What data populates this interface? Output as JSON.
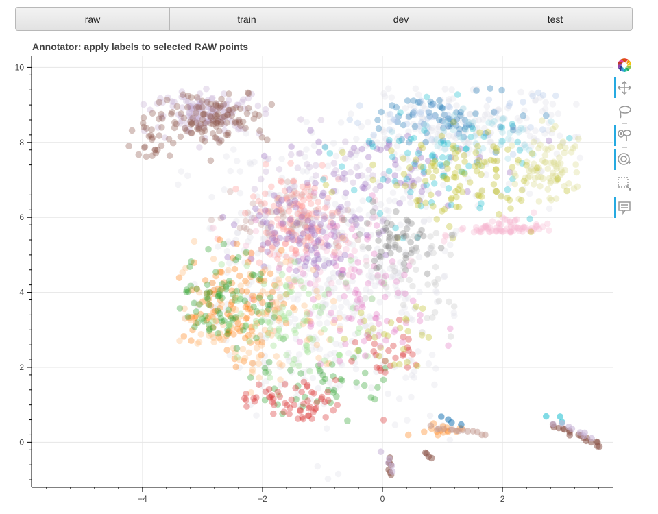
{
  "tabs": [
    {
      "id": "raw",
      "label": "raw"
    },
    {
      "id": "train",
      "label": "train"
    },
    {
      "id": "dev",
      "label": "dev"
    },
    {
      "id": "test",
      "label": "test"
    }
  ],
  "toolbar": {
    "tools": [
      {
        "name": "bokeh-logo-icon",
        "active": false
      },
      {
        "name": "pan-icon",
        "active": true
      },
      {
        "name": "lasso-select-icon",
        "active": false
      },
      {
        "name": "polygon-select-icon",
        "active": true
      },
      {
        "name": "wheel-zoom-icon",
        "active": true
      },
      {
        "name": "box-select-icon",
        "active": false
      },
      {
        "name": "hover-icon",
        "active": true
      }
    ]
  },
  "chart_data": {
    "type": "scatter",
    "title": "Annotator: apply labels to selected RAW points",
    "xlabel": "",
    "ylabel": "",
    "xlim": [
      -5.85,
      3.85
    ],
    "ylim": [
      -1.2,
      10.3
    ],
    "x_ticks": [
      -4,
      -2,
      0,
      2
    ],
    "x_tick_labels": [
      "−4",
      "−2",
      "0",
      "2"
    ],
    "y_ticks": [
      0,
      2,
      4,
      6,
      8,
      10
    ],
    "y_tick_labels": [
      "0",
      "2",
      "4",
      "6",
      "8",
      "10"
    ],
    "grid": true,
    "legend": "none",
    "point_opacity": 0.35,
    "clusters": [
      {
        "color": "#e0e0e8",
        "cx": -1.0,
        "cy": 4.3,
        "sx": 1.3,
        "sy": 2.0,
        "n": 480
      },
      {
        "color": "#e0e0e8",
        "cx": 1.4,
        "cy": 8.3,
        "sx": 0.9,
        "sy": 0.6,
        "n": 180
      },
      {
        "color": "#c5b0d5",
        "cx": -2.9,
        "cy": 8.8,
        "sx": 0.45,
        "sy": 0.28,
        "n": 130
      },
      {
        "color": "#8c564b",
        "cx": -2.9,
        "cy": 8.7,
        "sx": 0.5,
        "sy": 0.35,
        "n": 120
      },
      {
        "color": "#8c564b",
        "cx": -3.8,
        "cy": 7.9,
        "sx": 0.25,
        "sy": 0.2,
        "n": 20
      },
      {
        "color": "#c49c94",
        "cx": -1.5,
        "cy": 5.9,
        "sx": 0.5,
        "sy": 0.5,
        "n": 70
      },
      {
        "color": "#f7b6d2",
        "cx": 2.1,
        "cy": 5.3,
        "sx": 0.35,
        "sy": 0.25,
        "n": 80
      },
      {
        "color": "#f7b6d2",
        "cx": -1.0,
        "cy": 5.0,
        "sx": 0.6,
        "sy": 0.6,
        "n": 50
      },
      {
        "color": "#e377c2",
        "cx": -0.8,
        "cy": 4.6,
        "sx": 0.7,
        "sy": 0.8,
        "n": 60
      },
      {
        "color": "#ff9896",
        "cx": -1.5,
        "cy": 6.0,
        "sx": 0.4,
        "sy": 0.6,
        "n": 120
      },
      {
        "color": "#9467bd",
        "cx": -1.3,
        "cy": 5.7,
        "sx": 0.5,
        "sy": 0.6,
        "n": 90
      },
      {
        "color": "#9467bd",
        "cx": -0.2,
        "cy": 7.2,
        "sx": 0.9,
        "sy": 0.7,
        "n": 60
      },
      {
        "color": "#c5b0d5",
        "cx": -0.9,
        "cy": 6.8,
        "sx": 0.7,
        "sy": 0.8,
        "n": 60
      },
      {
        "color": "#1f77b4",
        "cx": 1.2,
        "cy": 8.6,
        "sx": 0.6,
        "sy": 0.45,
        "n": 70
      },
      {
        "color": "#aec7e8",
        "cx": 1.0,
        "cy": 8.8,
        "sx": 0.8,
        "sy": 0.4,
        "n": 45
      },
      {
        "color": "#17becf",
        "cx": 0.9,
        "cy": 7.4,
        "sx": 0.8,
        "sy": 0.8,
        "n": 70
      },
      {
        "color": "#9edae5",
        "cx": 1.6,
        "cy": 8.2,
        "sx": 0.6,
        "sy": 0.4,
        "n": 40
      },
      {
        "color": "#dbdb8d",
        "cx": 2.8,
        "cy": 7.3,
        "sx": 0.35,
        "sy": 0.5,
        "n": 80
      },
      {
        "color": "#bcbd22",
        "cx": 1.3,
        "cy": 7.1,
        "sx": 0.8,
        "sy": 0.6,
        "n": 110
      },
      {
        "color": "#7f7f7f",
        "cx": 0.2,
        "cy": 5.4,
        "sx": 0.35,
        "sy": 0.4,
        "n": 55
      },
      {
        "color": "#c7c7c7",
        "cx": 0.6,
        "cy": 4.3,
        "sx": 0.5,
        "sy": 0.7,
        "n": 45
      },
      {
        "color": "#ff7f0e",
        "cx": -2.6,
        "cy": 3.6,
        "sx": 0.45,
        "sy": 0.7,
        "n": 110
      },
      {
        "color": "#ffbb78",
        "cx": -2.2,
        "cy": 3.3,
        "sx": 0.8,
        "sy": 0.9,
        "n": 110
      },
      {
        "color": "#2ca02c",
        "cx": -2.6,
        "cy": 3.8,
        "sx": 0.4,
        "sy": 0.6,
        "n": 80
      },
      {
        "color": "#98df8a",
        "cx": -1.5,
        "cy": 3.2,
        "sx": 0.8,
        "sy": 0.8,
        "n": 90
      },
      {
        "color": "#2ca02c",
        "cx": -0.9,
        "cy": 1.5,
        "sx": 0.6,
        "sy": 0.4,
        "n": 40
      },
      {
        "color": "#d62728",
        "cx": -1.5,
        "cy": 1.0,
        "sx": 0.5,
        "sy": 0.3,
        "n": 60
      },
      {
        "color": "#d62728",
        "cx": 0.1,
        "cy": 2.3,
        "sx": 0.3,
        "sy": 0.4,
        "n": 25
      },
      {
        "color": "#bcbd22",
        "cx": 0.3,
        "cy": 2.8,
        "sx": 0.4,
        "sy": 0.6,
        "n": 25
      },
      {
        "color": "#ff7f0e",
        "cx": 0.9,
        "cy": 0.2,
        "sx": 0.2,
        "sy": 0.15,
        "n": 15
      },
      {
        "color": "#e377c2",
        "cx": -0.3,
        "cy": 3.2,
        "sx": 0.5,
        "sy": 0.6,
        "n": 40
      }
    ],
    "lines": [
      {
        "color": "#8c564b",
        "x0": 2.85,
        "y0": 0.45,
        "x1": 3.65,
        "y1": -0.1,
        "n": 18
      },
      {
        "color": "#17becf",
        "x0": 2.8,
        "y0": 0.7,
        "x1": 3.0,
        "y1": 0.55,
        "n": 3
      },
      {
        "color": "#c5b0d5",
        "x0": 2.9,
        "y0": 0.5,
        "x1": 3.5,
        "y1": 0.1,
        "n": 8
      },
      {
        "color": "#8c564b",
        "x0": 0.1,
        "y0": -0.4,
        "x1": 0.15,
        "y1": -0.9,
        "n": 7
      },
      {
        "color": "#c5b0d5",
        "x0": 0.05,
        "y0": -0.3,
        "x1": 0.15,
        "y1": -0.75,
        "n": 5
      },
      {
        "color": "#8c564b",
        "x0": 0.75,
        "y0": -0.25,
        "x1": 0.8,
        "y1": -0.4,
        "n": 4
      },
      {
        "color": "#c49c94",
        "x0": 0.8,
        "y0": 0.4,
        "x1": 1.7,
        "y1": 0.2,
        "n": 14
      },
      {
        "color": "#1f77b4",
        "x0": 1.0,
        "y0": 0.7,
        "x1": 1.3,
        "y1": 0.5,
        "n": 4
      }
    ]
  }
}
